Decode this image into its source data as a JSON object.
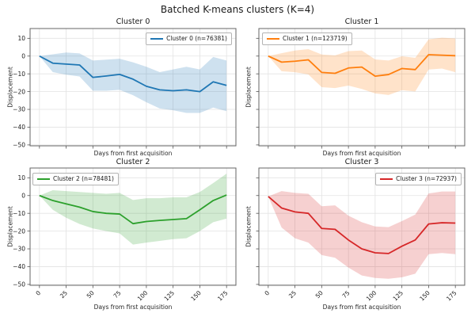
{
  "title": "Batched K-means clusters (K=4)",
  "chart_data": [
    {
      "type": "line",
      "title": "Cluster 0",
      "legend_label": "Cluster 0 (n=76381)",
      "color": "#1f77b4",
      "band_opacity": 0.22,
      "legend_pos": "top-right",
      "xlabel": "Days from first acquisition",
      "ylabel": "Displacement",
      "grid": true,
      "show_xticklabels": false,
      "show_yticklabels": true,
      "xticks": [
        0,
        25,
        50,
        75,
        100,
        125,
        150,
        175
      ],
      "yticks": [
        10,
        0,
        -10,
        -20,
        -30,
        -40,
        -50
      ],
      "xlim": [
        -8.75,
        183.75
      ],
      "ylim": [
        -50.5,
        15.5
      ],
      "x": [
        0,
        12.5,
        25,
        37.5,
        50,
        62.5,
        75,
        87.5,
        100,
        112.5,
        125,
        137.5,
        150,
        162.5,
        175
      ],
      "y": [
        0,
        -4,
        -4.5,
        -5,
        -12,
        -11.2,
        -10.3,
        -13,
        -17,
        -19,
        -19.5,
        -19,
        -20,
        -14.5,
        -16.5
      ],
      "band_upper": [
        0,
        1,
        2,
        1.5,
        -2.5,
        -2,
        -1.5,
        -3.5,
        -6,
        -9,
        -7.5,
        -6,
        -7.5,
        -0.5,
        -2.5
      ],
      "band_lower": [
        0,
        -9,
        -10.5,
        -11.5,
        -19.5,
        -19.5,
        -19,
        -22,
        -26,
        -29.5,
        -30.5,
        -32,
        -32,
        -29,
        -31
      ]
    },
    {
      "type": "line",
      "title": "Cluster 1",
      "legend_label": "Cluster 1 (n=123719)",
      "color": "#ff7f0e",
      "band_opacity": 0.22,
      "legend_pos": "top-left",
      "xlabel": "Days from first acquisition",
      "ylabel": "Displacement",
      "grid": true,
      "show_xticklabels": false,
      "show_yticklabels": false,
      "xticks": [
        0,
        25,
        50,
        75,
        100,
        125,
        150,
        175
      ],
      "yticks": [
        10,
        0,
        -10,
        -20,
        -30,
        -40,
        -50
      ],
      "xlim": [
        -8.75,
        183.75
      ],
      "ylim": [
        -50.5,
        15.5
      ],
      "x": [
        0,
        12.5,
        25,
        37.5,
        50,
        62.5,
        75,
        87.5,
        100,
        112.5,
        125,
        137.5,
        150,
        162.5,
        175
      ],
      "y": [
        0,
        -3.4,
        -2.9,
        -2.1,
        -9.2,
        -9.7,
        -6.7,
        -6.2,
        -11.3,
        -10.4,
        -7,
        -7.6,
        0.8,
        0.5,
        0.2
      ],
      "band_upper": [
        0,
        1.6,
        3.1,
        3.9,
        0.9,
        0.4,
        2.8,
        3.1,
        -1.9,
        -2.5,
        -0.1,
        -1,
        9.4,
        10.3,
        9.9
      ],
      "band_lower": [
        0,
        -8.5,
        -9.1,
        -10.3,
        -17.5,
        -18,
        -16.6,
        -18.5,
        -21,
        -21.9,
        -19.2,
        -19.9,
        -7.6,
        -7,
        -9.1
      ]
    },
    {
      "type": "line",
      "title": "Cluster 2",
      "legend_label": "Cluster 2 (n=78481)",
      "color": "#2ca02c",
      "band_opacity": 0.22,
      "legend_pos": "top-left",
      "xlabel": "Days from first acquisition",
      "ylabel": "Displacement",
      "grid": true,
      "show_xticklabels": true,
      "show_yticklabels": true,
      "xticks": [
        0,
        25,
        50,
        75,
        100,
        125,
        150,
        175
      ],
      "yticks": [
        10,
        0,
        -10,
        -20,
        -30,
        -40,
        -50
      ],
      "xlim": [
        -8.75,
        183.75
      ],
      "ylim": [
        -50.5,
        15.5
      ],
      "x": [
        0,
        12.5,
        25,
        37.5,
        50,
        62.5,
        75,
        87.5,
        100,
        112.5,
        125,
        137.5,
        150,
        162.5,
        175
      ],
      "y": [
        0,
        -2.8,
        -4.7,
        -6.5,
        -9,
        -10,
        -10.4,
        -15.8,
        -14.6,
        -14,
        -13.5,
        -13,
        -8,
        -2.8,
        0.3
      ],
      "band_upper": [
        0,
        3,
        2.5,
        2,
        1.5,
        1,
        1.5,
        -2.5,
        -1.5,
        -1.5,
        -1,
        -1,
        2,
        7,
        12.3
      ],
      "band_lower": [
        0,
        -8,
        -12.5,
        -16,
        -18.5,
        -20,
        -21.3,
        -27.6,
        -26.5,
        -25.5,
        -24.5,
        -24,
        -20,
        -15,
        -13
      ]
    },
    {
      "type": "line",
      "title": "Cluster 3",
      "legend_label": "Cluster 3 (n=72937)",
      "color": "#d62728",
      "band_opacity": 0.22,
      "legend_pos": "top-right",
      "xlabel": "Days from first acquisition",
      "ylabel": "Displacement",
      "grid": true,
      "show_xticklabels": true,
      "show_yticklabels": false,
      "xticks": [
        0,
        25,
        50,
        75,
        100,
        125,
        150,
        175
      ],
      "yticks": [
        10,
        0,
        -10,
        -20,
        -30,
        -40,
        -50
      ],
      "xlim": [
        -8.75,
        183.75
      ],
      "ylim": [
        -50.5,
        15.5
      ],
      "x": [
        0,
        12.5,
        25,
        37.5,
        50,
        62.5,
        75,
        87.5,
        100,
        112.5,
        125,
        137.5,
        150,
        162.5,
        175
      ],
      "y": [
        -0.5,
        -7,
        -9.2,
        -10,
        -18.5,
        -19,
        -25,
        -30,
        -32.2,
        -32.6,
        -28.5,
        -25,
        -16,
        -15.3,
        -15.5
      ],
      "band_upper": [
        -0.5,
        2.5,
        1.5,
        1,
        -6,
        -5.5,
        -11.3,
        -15,
        -17.4,
        -17.8,
        -14.4,
        -10.7,
        1.2,
        2.3,
        2.3
      ],
      "band_lower": [
        -0.5,
        -18,
        -24,
        -26.5,
        -33.5,
        -35,
        -40.5,
        -45,
        -46.4,
        -46.8,
        -46,
        -44,
        -33,
        -32.3,
        -33
      ]
    }
  ]
}
